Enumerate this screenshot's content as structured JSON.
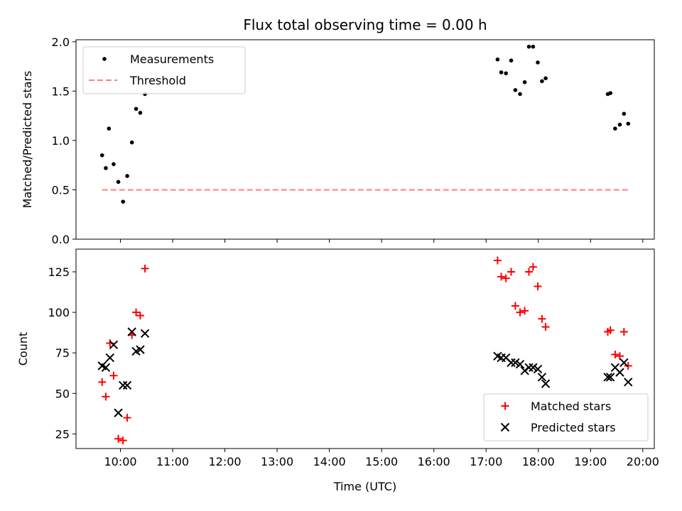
{
  "chart_data": {
    "type": "scatter",
    "title": "Flux total observing time = 0.00 h",
    "xlabel": "Time (UTC)",
    "x_ticks": [
      "10:00",
      "11:00",
      "12:00",
      "13:00",
      "14:00",
      "15:00",
      "16:00",
      "17:00",
      "18:00",
      "19:00",
      "20:00"
    ],
    "x_tick_hours": [
      10,
      11,
      12,
      13,
      14,
      15,
      16,
      17,
      18,
      19,
      20
    ],
    "xlim": [
      9.15,
      20.22
    ],
    "panels": [
      {
        "ylabel": "Matched/Predicted stars",
        "ylim": [
          0,
          2.02
        ],
        "y_ticks": [
          0.0,
          0.5,
          1.0,
          1.5,
          2.0
        ],
        "y_tick_labels": [
          "0.0",
          "0.5",
          "1.0",
          "1.5",
          "2.0"
        ],
        "legend_position": "upper-left",
        "series": [
          {
            "name": "Measurements",
            "marker": "dot",
            "color": "#000000",
            "x": [
              9.65,
              9.72,
              9.78,
              9.87,
              9.96,
              10.05,
              10.13,
              10.22,
              10.3,
              10.38,
              10.47,
              17.22,
              17.29,
              17.38,
              17.48,
              17.56,
              17.65,
              17.74,
              17.82,
              17.9,
              17.99,
              18.07,
              18.14,
              19.33,
              19.38,
              19.47,
              19.56,
              19.64,
              19.72
            ],
            "y": [
              0.85,
              0.72,
              1.12,
              0.76,
              0.58,
              0.38,
              0.64,
              0.98,
              1.32,
              1.28,
              1.47,
              1.82,
              1.69,
              1.68,
              1.81,
              1.51,
              1.47,
              1.59,
              1.95,
              1.95,
              1.79,
              1.6,
              1.63,
              1.47,
              1.48,
              1.12,
              1.16,
              1.27,
              1.17
            ]
          },
          {
            "name": "Threshold",
            "marker": "dashed-line",
            "color": "#ff7f7f",
            "x": [
              9.65,
              19.72
            ],
            "y": [
              0.5,
              0.5
            ]
          }
        ]
      },
      {
        "ylabel": "Count",
        "ylim": [
          16,
          139
        ],
        "y_ticks": [
          25,
          50,
          75,
          100,
          125
        ],
        "y_tick_labels": [
          "25",
          "50",
          "75",
          "100",
          "125"
        ],
        "legend_position": "lower-right",
        "series": [
          {
            "name": "Matched stars",
            "marker": "plus",
            "color": "#ff0000",
            "x": [
              9.65,
              9.72,
              9.8,
              9.87,
              9.96,
              10.05,
              10.13,
              10.22,
              10.3,
              10.38,
              10.47,
              17.22,
              17.29,
              17.38,
              17.48,
              17.56,
              17.65,
              17.74,
              17.82,
              17.9,
              17.99,
              18.07,
              18.14,
              19.33,
              19.38,
              19.47,
              19.56,
              19.64,
              19.72
            ],
            "y": [
              57,
              48,
              81,
              61,
              22,
              21,
              35,
              86,
              100,
              98,
              127,
              132,
              122,
              121,
              125,
              104,
              100,
              101,
              125,
              128,
              116,
              96,
              91,
              88,
              89,
              74,
              73,
              88,
              67
            ]
          },
          {
            "name": "Predicted stars",
            "marker": "x",
            "color": "#000000",
            "x": [
              9.65,
              9.72,
              9.8,
              9.87,
              9.96,
              10.05,
              10.13,
              10.22,
              10.3,
              10.38,
              10.47,
              17.22,
              17.29,
              17.38,
              17.48,
              17.56,
              17.65,
              17.74,
              17.82,
              17.9,
              17.99,
              18.07,
              18.14,
              19.33,
              19.38,
              19.47,
              19.56,
              19.64,
              19.72
            ],
            "y": [
              67,
              66,
              72,
              80,
              38,
              55,
              55,
              88,
              76,
              77,
              87,
              73,
              72,
              72,
              69,
              69,
              68,
              64,
              66,
              66,
              65,
              60,
              56,
              60,
              60,
              66,
              63,
              69,
              57
            ]
          }
        ]
      }
    ]
  }
}
